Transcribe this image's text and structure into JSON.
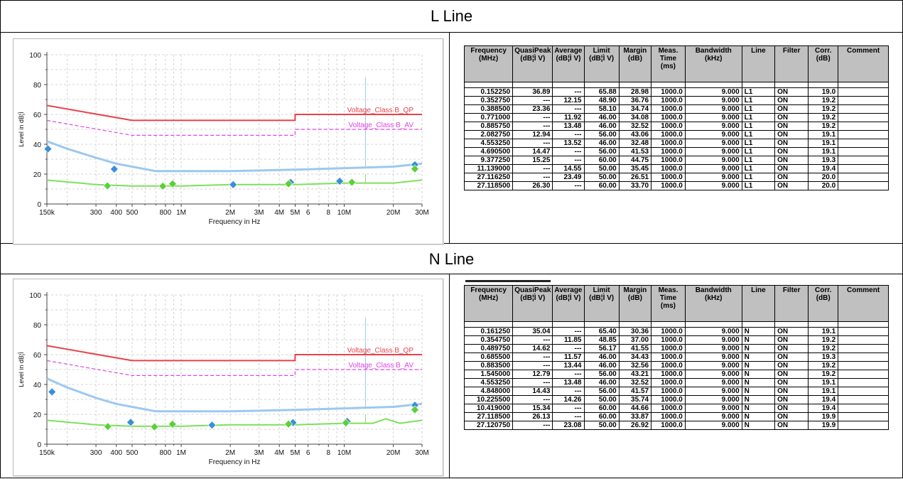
{
  "sections": [
    {
      "title": "L Line",
      "line_code": "L1"
    },
    {
      "title": "N Line",
      "line_code": "N"
    }
  ],
  "table_headers": [
    "Frequency (MHz)",
    "QuasiPeak (dB¦Ì V)",
    "Average (dB¦Ì V)",
    "Limit (dB¦Ì V)",
    "Margin (dB)",
    "Meas. Time (ms)",
    "Bandwidth (kHz)",
    "Line",
    "Filter",
    "Corr. (dB)",
    "Comment"
  ],
  "chart_data": [
    {
      "type": "scatter",
      "xlabel": "Frequency in Hz",
      "ylabel": "Level in dB¦Ì",
      "x_scale": "log",
      "xlim": [
        150000,
        30000000
      ],
      "ylim": [
        0,
        100
      ],
      "grid": true,
      "xticks": [
        "150k",
        "300",
        "400",
        "500",
        "800",
        "1M",
        "2M",
        "3M",
        "4M",
        "5M",
        "6",
        "8",
        "10M",
        "20M",
        "30M"
      ],
      "yticks": [
        0,
        20,
        40,
        60,
        80,
        100
      ],
      "limit_lines": [
        {
          "name": "Voltage_Class B_QP",
          "color": "#e8424a",
          "points": [
            [
              150000,
              66
            ],
            [
              500000,
              56
            ],
            [
              5000000,
              56
            ],
            [
              5000000,
              60
            ],
            [
              30000000,
              60
            ]
          ]
        },
        {
          "name": "Voltage_Class B_AV",
          "color": "#e040e8",
          "points": [
            [
              150000,
              56
            ],
            [
              500000,
              46
            ],
            [
              5000000,
              46
            ],
            [
              5000000,
              50
            ],
            [
              30000000,
              50
            ]
          ]
        }
      ],
      "trace_peak": {
        "color": "#9cc8f0",
        "points": [
          [
            150000,
            42
          ],
          [
            200000,
            37
          ],
          [
            300000,
            31
          ],
          [
            400000,
            27
          ],
          [
            500000,
            25
          ],
          [
            700000,
            22
          ],
          [
            1000000,
            22
          ],
          [
            2000000,
            22
          ],
          [
            5000000,
            23
          ],
          [
            10000000,
            24
          ],
          [
            20000000,
            25
          ],
          [
            30000000,
            27
          ]
        ]
      },
      "trace_avg": {
        "color": "#7ee05a",
        "points": [
          [
            150000,
            16
          ],
          [
            300000,
            13
          ],
          [
            500000,
            12
          ],
          [
            1000000,
            12
          ],
          [
            2000000,
            13
          ],
          [
            5000000,
            13
          ],
          [
            10000000,
            14
          ],
          [
            20000000,
            14
          ],
          [
            30000000,
            16
          ]
        ]
      },
      "quasipeak_markers": [
        [
          152250,
          36.89
        ],
        [
          388500,
          23.36
        ],
        [
          2082750,
          12.94
        ],
        [
          4690500,
          14.47
        ],
        [
          9377250,
          15.25
        ],
        [
          27118500,
          26.3
        ]
      ],
      "average_markers": [
        [
          352750,
          12.15
        ],
        [
          771000,
          11.92
        ],
        [
          885750,
          13.48
        ],
        [
          4553250,
          13.52
        ],
        [
          11139000,
          14.55
        ],
        [
          27116250,
          23.49
        ]
      ],
      "rows": [
        [
          "0.152250",
          "36.89",
          "---",
          "65.88",
          "28.98",
          "1000.0",
          "9.000",
          "L1",
          "ON",
          "19.0",
          ""
        ],
        [
          "0.352750",
          "---",
          "12.15",
          "48.90",
          "36.76",
          "1000.0",
          "9.000",
          "L1",
          "ON",
          "19.2",
          ""
        ],
        [
          "0.388500",
          "23.36",
          "---",
          "58.10",
          "34.74",
          "1000.0",
          "9.000",
          "L1",
          "ON",
          "19.2",
          ""
        ],
        [
          "0.771000",
          "---",
          "11.92",
          "46.00",
          "34.08",
          "1000.0",
          "9.000",
          "L1",
          "ON",
          "19.2",
          ""
        ],
        [
          "0.885750",
          "---",
          "13.48",
          "46.00",
          "32.52",
          "1000.0",
          "9.000",
          "L1",
          "ON",
          "19.2",
          ""
        ],
        [
          "2.082750",
          "12.94",
          "---",
          "56.00",
          "43.06",
          "1000.0",
          "9.000",
          "L1",
          "ON",
          "19.1",
          ""
        ],
        [
          "4.553250",
          "---",
          "13.52",
          "46.00",
          "32.48",
          "1000.0",
          "9.000",
          "L1",
          "ON",
          "19.1",
          ""
        ],
        [
          "4.690500",
          "14.47",
          "---",
          "56.00",
          "41.53",
          "1000.0",
          "9.000",
          "L1",
          "ON",
          "19.1",
          ""
        ],
        [
          "9.377250",
          "15.25",
          "---",
          "60.00",
          "44.75",
          "1000.0",
          "9.000",
          "L1",
          "ON",
          "19.3",
          ""
        ],
        [
          "11.139000",
          "---",
          "14.55",
          "50.00",
          "35.45",
          "1000.0",
          "9.000",
          "L1",
          "ON",
          "19.4",
          ""
        ],
        [
          "27.116250",
          "---",
          "23.49",
          "50.00",
          "26.51",
          "1000.0",
          "9.000",
          "L1",
          "ON",
          "20.0",
          ""
        ],
        [
          "27.118500",
          "26.30",
          "---",
          "60.00",
          "33.70",
          "1000.0",
          "9.000",
          "L1",
          "ON",
          "20.0",
          ""
        ]
      ]
    },
    {
      "type": "scatter",
      "xlabel": "Frequency in Hz",
      "ylabel": "Level in dB¦Ì",
      "x_scale": "log",
      "xlim": [
        150000,
        30000000
      ],
      "ylim": [
        0,
        100
      ],
      "grid": true,
      "xticks": [
        "150k",
        "300",
        "400",
        "500",
        "800",
        "1M",
        "2M",
        "3M",
        "4M",
        "5M",
        "6",
        "8",
        "10M",
        "20M",
        "30M"
      ],
      "yticks": [
        0,
        20,
        40,
        60,
        80,
        100
      ],
      "limit_lines": [
        {
          "name": "Voltage_Class B_QP",
          "color": "#e8424a",
          "points": [
            [
              150000,
              66
            ],
            [
              500000,
              56
            ],
            [
              5000000,
              56
            ],
            [
              5000000,
              60
            ],
            [
              30000000,
              60
            ]
          ]
        },
        {
          "name": "Voltage_Class B_AV",
          "color": "#e040e8",
          "points": [
            [
              150000,
              56
            ],
            [
              500000,
              46
            ],
            [
              5000000,
              46
            ],
            [
              5000000,
              50
            ],
            [
              30000000,
              50
            ]
          ]
        }
      ],
      "trace_peak": {
        "color": "#9cc8f0",
        "points": [
          [
            150000,
            44
          ],
          [
            200000,
            38
          ],
          [
            300000,
            31
          ],
          [
            400000,
            27
          ],
          [
            500000,
            25
          ],
          [
            700000,
            22
          ],
          [
            1000000,
            22
          ],
          [
            2000000,
            22
          ],
          [
            5000000,
            23
          ],
          [
            10000000,
            24
          ],
          [
            20000000,
            25
          ],
          [
            30000000,
            27
          ]
        ]
      },
      "trace_avg": {
        "color": "#7ee05a",
        "points": [
          [
            150000,
            16
          ],
          [
            300000,
            13
          ],
          [
            500000,
            12
          ],
          [
            1000000,
            12
          ],
          [
            2000000,
            13
          ],
          [
            5000000,
            13
          ],
          [
            10000000,
            14
          ],
          [
            15000000,
            14
          ],
          [
            18000000,
            17
          ],
          [
            22000000,
            14
          ],
          [
            30000000,
            16
          ]
        ]
      },
      "quasipeak_markers": [
        [
          161250,
          35.04
        ],
        [
          489750,
          14.62
        ],
        [
          1545000,
          12.79
        ],
        [
          4848000,
          14.43
        ],
        [
          10419000,
          15.34
        ],
        [
          27118500,
          26.13
        ]
      ],
      "average_markers": [
        [
          354750,
          11.85
        ],
        [
          685500,
          11.57
        ],
        [
          883500,
          13.44
        ],
        [
          4553250,
          13.48
        ],
        [
          10225500,
          14.26
        ],
        [
          27120750,
          23.08
        ]
      ],
      "rows": [
        [
          "0.161250",
          "35.04",
          "---",
          "65.40",
          "30.36",
          "1000.0",
          "9.000",
          "N",
          "ON",
          "19.1",
          ""
        ],
        [
          "0.354750",
          "---",
          "11.85",
          "48.85",
          "37.00",
          "1000.0",
          "9.000",
          "N",
          "ON",
          "19.2",
          ""
        ],
        [
          "0.489750",
          "14.62",
          "---",
          "56.17",
          "41.55",
          "1000.0",
          "9.000",
          "N",
          "ON",
          "19.2",
          ""
        ],
        [
          "0.685500",
          "---",
          "11.57",
          "46.00",
          "34.43",
          "1000.0",
          "9.000",
          "N",
          "ON",
          "19.3",
          ""
        ],
        [
          "0.883500",
          "---",
          "13.44",
          "46.00",
          "32.56",
          "1000.0",
          "9.000",
          "N",
          "ON",
          "19.2",
          ""
        ],
        [
          "1.545000",
          "12.79",
          "---",
          "56.00",
          "43.21",
          "1000.0",
          "9.000",
          "N",
          "ON",
          "19.2",
          ""
        ],
        [
          "4.553250",
          "---",
          "13.48",
          "46.00",
          "32.52",
          "1000.0",
          "9.000",
          "N",
          "ON",
          "19.1",
          ""
        ],
        [
          "4.848000",
          "14.43",
          "---",
          "56.00",
          "41.57",
          "1000.0",
          "9.000",
          "N",
          "ON",
          "19.1",
          ""
        ],
        [
          "10.225500",
          "---",
          "14.26",
          "50.00",
          "35.74",
          "1000.0",
          "9.000",
          "N",
          "ON",
          "19.4",
          ""
        ],
        [
          "10.419000",
          "15.34",
          "---",
          "60.00",
          "44.66",
          "1000.0",
          "9.000",
          "N",
          "ON",
          "19.4",
          ""
        ],
        [
          "27.118500",
          "26.13",
          "---",
          "60.00",
          "33.87",
          "1000.0",
          "9.000",
          "N",
          "ON",
          "19.9",
          ""
        ],
        [
          "27.120750",
          "---",
          "23.08",
          "50.00",
          "26.92",
          "1000.0",
          "9.000",
          "N",
          "ON",
          "19.9",
          ""
        ]
      ]
    }
  ]
}
